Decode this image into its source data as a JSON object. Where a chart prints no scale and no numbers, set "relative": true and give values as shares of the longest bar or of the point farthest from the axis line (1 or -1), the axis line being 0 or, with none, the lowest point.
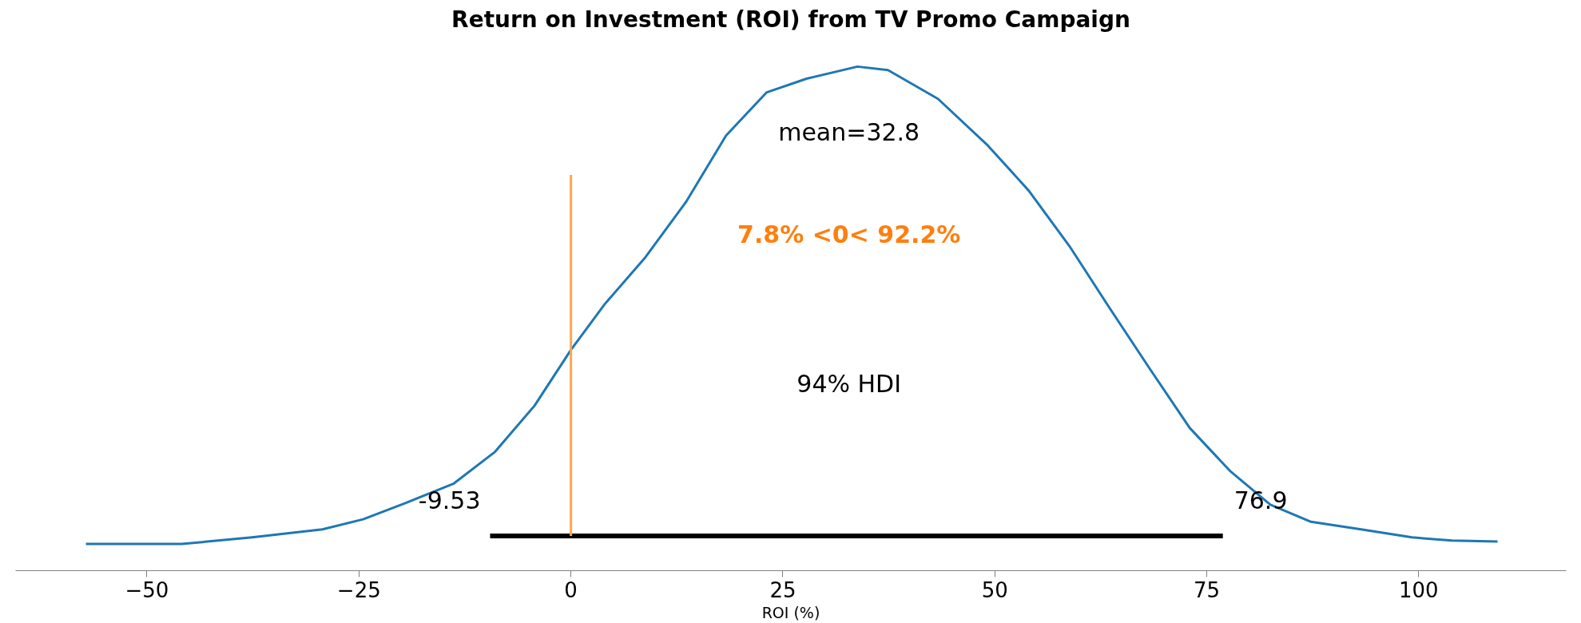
{
  "chart_data": {
    "type": "line",
    "title": "Return on Investment (ROI) from TV Promo Campaign",
    "xlabel": "ROI (%)",
    "relative": true,
    "grid": false,
    "xlim": [
      -65.5,
      117.4
    ],
    "xticks": [
      {
        "value": -50,
        "label": "−50"
      },
      {
        "value": -25,
        "label": "−25"
      },
      0,
      25,
      50,
      75,
      100
    ],
    "series": [
      {
        "color": "#1f77b4",
        "x": [
          -57.2,
          -45.9,
          -37.6,
          -29.3,
          -24.5,
          -19.7,
          -13.8,
          -9.0,
          -4.3,
          0,
          4.0,
          8.8,
          13.6,
          18.3,
          23.1,
          27.8,
          33.8,
          37.4,
          43.3,
          49.2,
          54.0,
          58.8,
          63.5,
          68.3,
          73.0,
          77.8,
          82.5,
          87.3,
          93.2,
          99.2,
          103.9,
          109.3
        ],
        "values": [
          0.053,
          0.053,
          0.066,
          0.082,
          0.102,
          0.133,
          0.173,
          0.235,
          0.327,
          0.438,
          0.529,
          0.622,
          0.732,
          0.863,
          0.949,
          0.976,
          1.0,
          0.993,
          0.936,
          0.843,
          0.754,
          0.644,
          0.522,
          0.4,
          0.283,
          0.197,
          0.131,
          0.097,
          0.082,
          0.066,
          0.06,
          0.058
        ]
      },
      {
        "type": "line",
        "color": "#000000",
        "x": [
          -9.53,
          76.9
        ],
        "values": [
          0.069,
          0.069
        ]
      },
      {
        "type": "line",
        "color": "#ffa64d",
        "x": [
          0,
          0
        ],
        "values": [
          0.069,
          0.785
        ]
      }
    ],
    "annotations": [
      "mean=32.8",
      "7.8% <0< 92.2%",
      "94% HDI",
      "-9.53",
      "76.9"
    ]
  }
}
